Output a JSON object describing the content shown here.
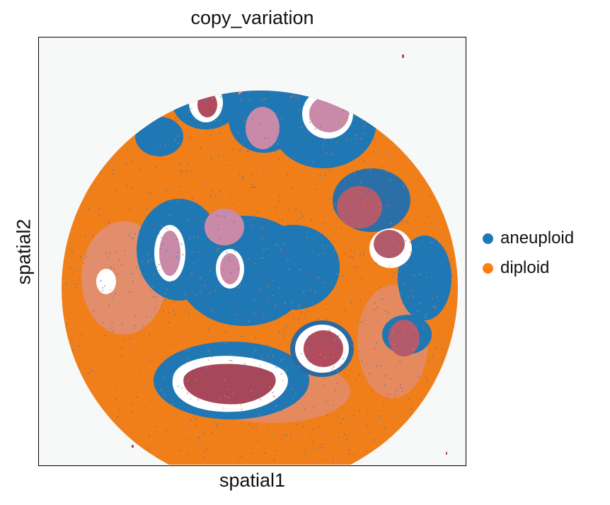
{
  "chart_data": {
    "type": "scatter",
    "title": "copy_variation",
    "xlabel": "spatial1",
    "ylabel": "spatial2",
    "grid": false,
    "legend_position": "right",
    "series": [
      {
        "name": "aneuploid",
        "color": "#1f77b4"
      },
      {
        "name": "diploid",
        "color": "#ff7f0e"
      }
    ]
  }
}
